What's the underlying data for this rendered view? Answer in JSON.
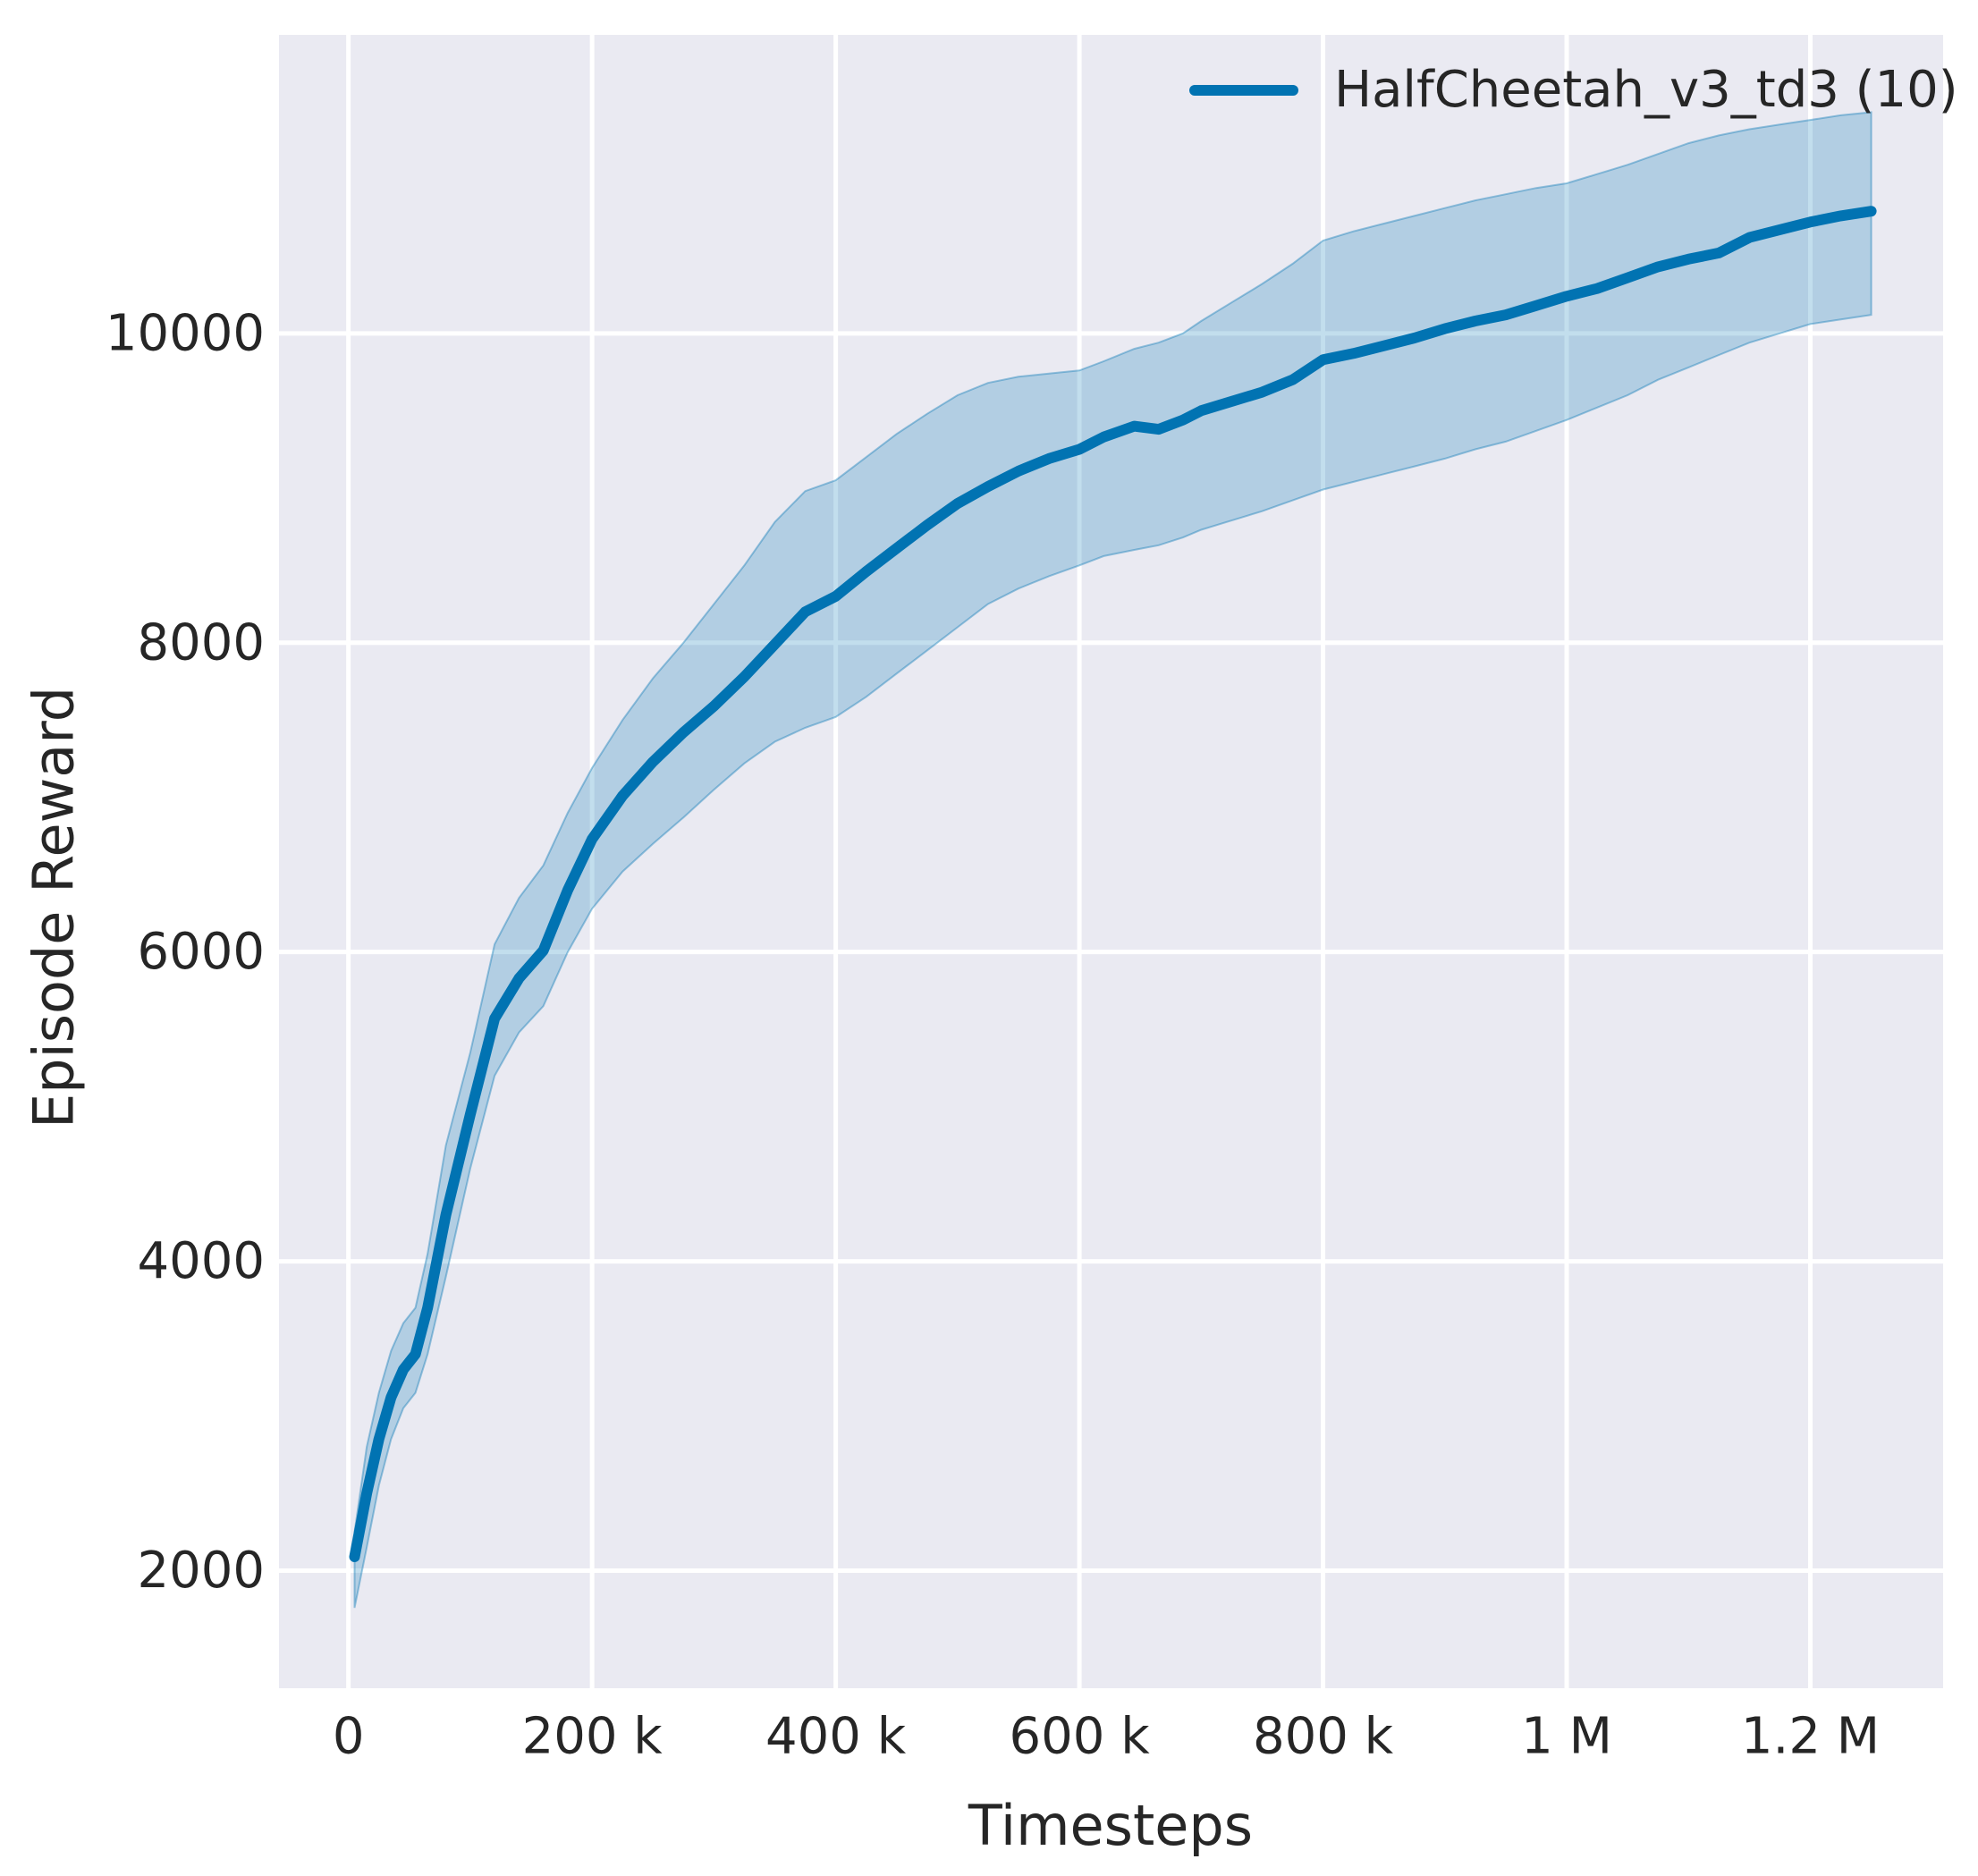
{
  "figure": {
    "xlabel": "Timesteps",
    "ylabel": "Episode Reward"
  },
  "legend": {
    "entries": [
      {
        "label": "HalfCheetah_v3_td3 (10)",
        "color": "#0173b2"
      }
    ]
  },
  "colors": {
    "line": "#0173b2",
    "band_fill": "rgba(1,115,178,0.24)",
    "band_edge": "rgba(1,115,178,0.38)",
    "plot_background": "#eaeaf2",
    "gridline": "#ffffff",
    "text": "#262626"
  },
  "chart_data": {
    "type": "line",
    "title": "",
    "xlabel": "Timesteps",
    "ylabel": "Episode Reward",
    "grid": true,
    "legend_position": "upper right",
    "xlim": [
      -57000,
      1309000
    ],
    "ylim": [
      1240,
      11930
    ],
    "xticks": [
      {
        "value": 0,
        "label": "0"
      },
      {
        "value": 200000,
        "label": "200 k"
      },
      {
        "value": 400000,
        "label": "400 k"
      },
      {
        "value": 600000,
        "label": "600 k"
      },
      {
        "value": 800000,
        "label": "800 k"
      },
      {
        "value": 1000000,
        "label": "1 M"
      },
      {
        "value": 1200000,
        "label": "1.2 M"
      }
    ],
    "yticks": [
      {
        "value": 2000,
        "label": "2000"
      },
      {
        "value": 4000,
        "label": "4000"
      },
      {
        "value": 6000,
        "label": "6000"
      },
      {
        "value": 8000,
        "label": "8000"
      },
      {
        "value": 10000,
        "label": "10000"
      }
    ],
    "series": [
      {
        "name": "HalfCheetah_v3_td3 (10)",
        "x": [
          5000,
          15000,
          25000,
          35000,
          45000,
          55000,
          65000,
          80000,
          100000,
          120000,
          140000,
          160000,
          180000,
          200000,
          225000,
          250000,
          275000,
          300000,
          325000,
          350000,
          375000,
          400000,
          425000,
          450000,
          475000,
          500000,
          525000,
          550000,
          575000,
          600000,
          620000,
          645000,
          665000,
          685000,
          700000,
          725000,
          750000,
          775000,
          800000,
          825000,
          850000,
          875000,
          900000,
          925000,
          950000,
          975000,
          1000000,
          1025000,
          1050000,
          1075000,
          1100000,
          1125000,
          1150000,
          1175000,
          1200000,
          1225000,
          1250000
        ],
        "mean": [
          2090,
          2500,
          2850,
          3120,
          3300,
          3400,
          3700,
          4300,
          4950,
          5570,
          5830,
          6010,
          6400,
          6730,
          7010,
          7230,
          7420,
          7590,
          7780,
          7990,
          8200,
          8300,
          8460,
          8610,
          8760,
          8900,
          9010,
          9110,
          9190,
          9250,
          9330,
          9400,
          9380,
          9440,
          9500,
          9560,
          9620,
          9700,
          9830,
          9870,
          9920,
          9970,
          10030,
          10080,
          10120,
          10180,
          10240,
          10290,
          10360,
          10430,
          10480,
          10520,
          10620,
          10670,
          10720,
          10760,
          10790
        ],
        "lower": [
          1760,
          2150,
          2550,
          2850,
          3050,
          3150,
          3400,
          3900,
          4600,
          5200,
          5480,
          5650,
          6000,
          6280,
          6520,
          6700,
          6870,
          7050,
          7220,
          7360,
          7450,
          7520,
          7650,
          7800,
          7950,
          8100,
          8250,
          8350,
          8430,
          8500,
          8560,
          8600,
          8630,
          8680,
          8730,
          8790,
          8850,
          8920,
          8990,
          9040,
          9090,
          9140,
          9190,
          9250,
          9300,
          9370,
          9440,
          9520,
          9600,
          9700,
          9780,
          9860,
          9940,
          10000,
          10060,
          10090,
          10120
        ],
        "upper": [
          2250,
          2800,
          3150,
          3420,
          3600,
          3700,
          4050,
          4750,
          5350,
          6050,
          6350,
          6560,
          6900,
          7190,
          7500,
          7770,
          8000,
          8250,
          8500,
          8780,
          8980,
          9050,
          9200,
          9350,
          9480,
          9600,
          9680,
          9720,
          9740,
          9760,
          9820,
          9900,
          9940,
          10000,
          10080,
          10200,
          10320,
          10450,
          10600,
          10660,
          10710,
          10760,
          10810,
          10860,
          10900,
          10940,
          10970,
          11030,
          11090,
          11160,
          11230,
          11280,
          11320,
          11350,
          11380,
          11410,
          11430
        ]
      }
    ]
  }
}
